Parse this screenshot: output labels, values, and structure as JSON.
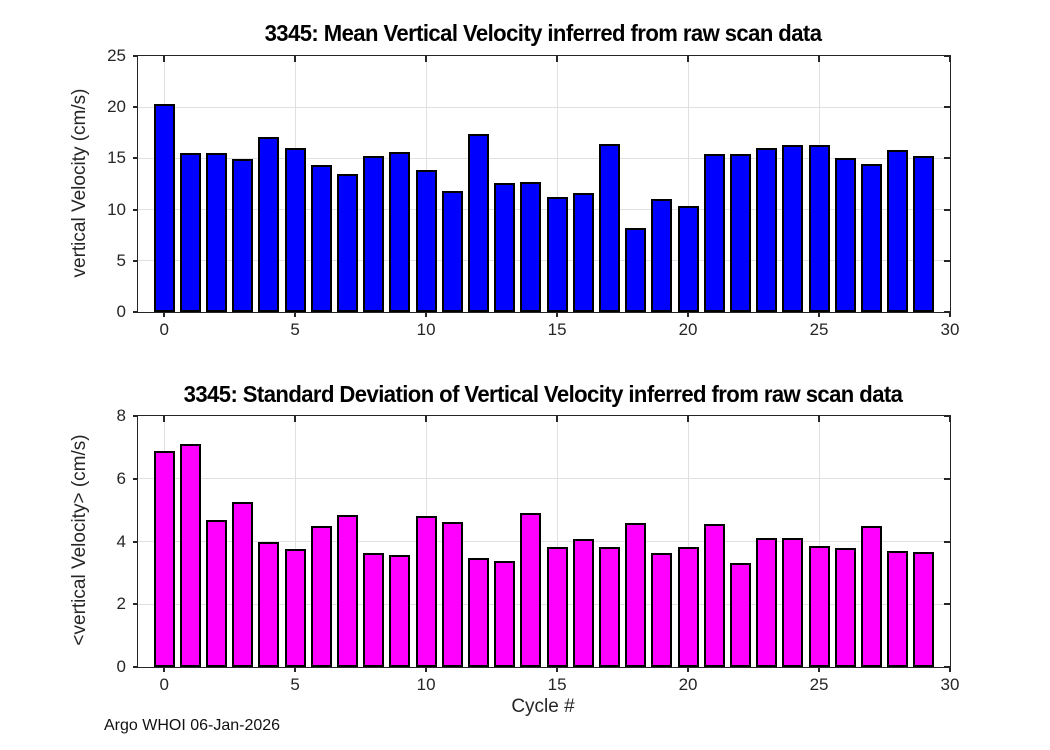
{
  "chart_data": [
    {
      "type": "bar",
      "title": "3345: Mean Vertical Velocity inferred from raw scan data",
      "xlabel": "",
      "ylabel": "vertical Velocity (cm/s)",
      "bar_color": "#0000ff",
      "bar_edge_color": "#000000",
      "grid": true,
      "legend": "none",
      "xlim": [
        -1,
        30
      ],
      "ylim": [
        0,
        25
      ],
      "xticks": [
        0,
        5,
        10,
        15,
        20,
        25,
        30
      ],
      "yticks": [
        0,
        5,
        10,
        15,
        20,
        25
      ],
      "x": [
        0,
        1,
        2,
        3,
        4,
        5,
        6,
        7,
        8,
        9,
        10,
        11,
        12,
        13,
        14,
        15,
        16,
        17,
        18,
        19,
        20,
        21,
        22,
        23,
        24,
        25,
        26,
        27,
        28,
        29
      ],
      "values": [
        20.3,
        15.5,
        15.5,
        14.9,
        17.1,
        16.0,
        14.4,
        13.5,
        15.2,
        15.6,
        13.9,
        11.8,
        17.4,
        12.6,
        12.7,
        11.2,
        11.6,
        16.4,
        8.2,
        11.0,
        10.4,
        15.4,
        15.4,
        16.0,
        16.3,
        16.3,
        15.0,
        14.5,
        15.8,
        15.2
      ]
    },
    {
      "type": "bar",
      "title": "3345: Standard Deviation of Vertical Velocity inferred from raw scan data",
      "xlabel": "Cycle #",
      "ylabel": "<vertical Velocity> (cm/s)",
      "bar_color": "#ff00ff",
      "bar_edge_color": "#000000",
      "grid": true,
      "legend": "none",
      "xlim": [
        -1,
        30
      ],
      "ylim": [
        0,
        8
      ],
      "xticks": [
        0,
        5,
        10,
        15,
        20,
        25,
        30
      ],
      "yticks": [
        0,
        2,
        4,
        6,
        8
      ],
      "x": [
        0,
        1,
        2,
        3,
        4,
        5,
        6,
        7,
        8,
        9,
        10,
        11,
        12,
        13,
        14,
        15,
        16,
        17,
        18,
        19,
        20,
        21,
        22,
        23,
        24,
        25,
        26,
        27,
        28,
        29
      ],
      "values": [
        6.9,
        7.1,
        4.7,
        5.25,
        4.0,
        3.75,
        4.5,
        4.85,
        3.63,
        3.57,
        4.8,
        4.62,
        3.48,
        3.39,
        4.9,
        3.82,
        4.07,
        3.82,
        4.6,
        3.62,
        3.84,
        4.56,
        3.3,
        4.1,
        4.12,
        3.86,
        3.78,
        4.5,
        3.7,
        3.65
      ]
    }
  ],
  "footer": {
    "text": "Argo WHOI 06-Jan-2026"
  },
  "colors": {
    "background": "#ffffff",
    "grid": "#e0e0e0",
    "axis": "#262626",
    "tick_text": "#262626",
    "title_text": "#000000"
  }
}
